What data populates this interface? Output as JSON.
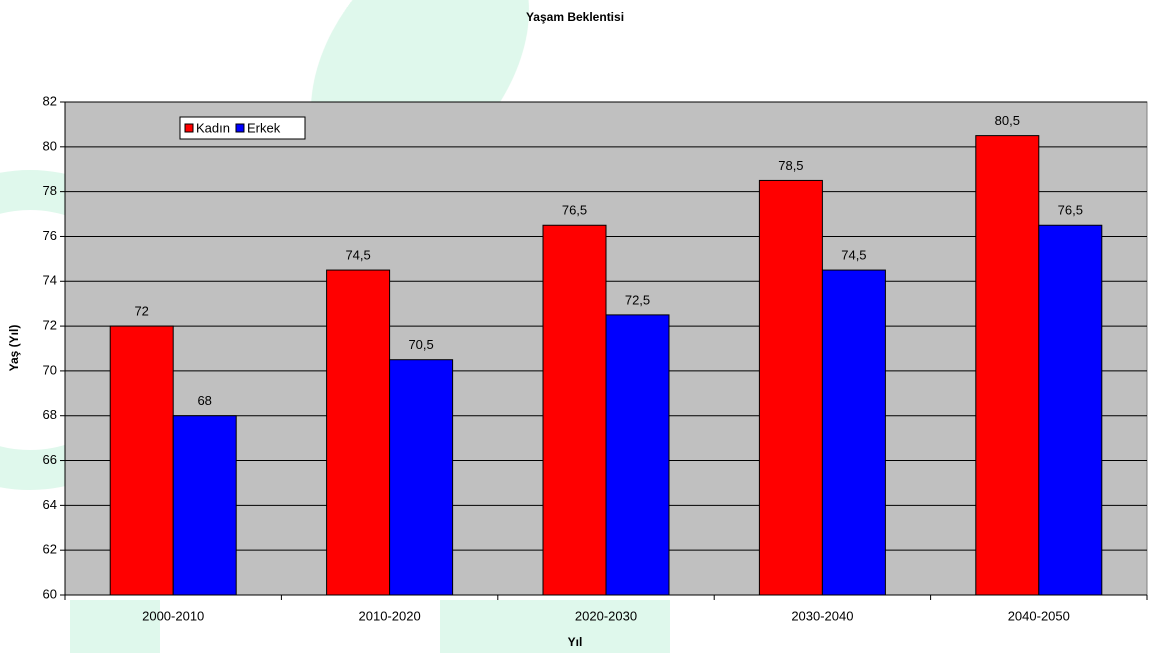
{
  "chart_data": {
    "type": "bar",
    "title": "Yaşam Beklentisi",
    "x_label": "Yıl",
    "y_label": "Yaş (Yıl)",
    "categories": [
      "2000-2010",
      "2010-2020",
      "2020-2030",
      "2030-2040",
      "2040-2050"
    ],
    "series": [
      {
        "name": "Kadın",
        "color": "#ff0000",
        "values": [
          72,
          74.5,
          76.5,
          78.5,
          80.5
        ],
        "value_labels": [
          "72",
          "74,5",
          "76,5",
          "78,5",
          "80,5"
        ]
      },
      {
        "name": "Erkek",
        "color": "#0000ff",
        "values": [
          68,
          70.5,
          72.5,
          74.5,
          76.5
        ],
        "value_labels": [
          "68",
          "70,5",
          "72,5",
          "74,5",
          "76,5"
        ]
      }
    ],
    "ylim": [
      60,
      82
    ],
    "yticks": [
      60,
      62,
      64,
      66,
      68,
      70,
      72,
      74,
      76,
      78,
      80,
      82
    ],
    "grid": true,
    "legend": "upper left"
  }
}
